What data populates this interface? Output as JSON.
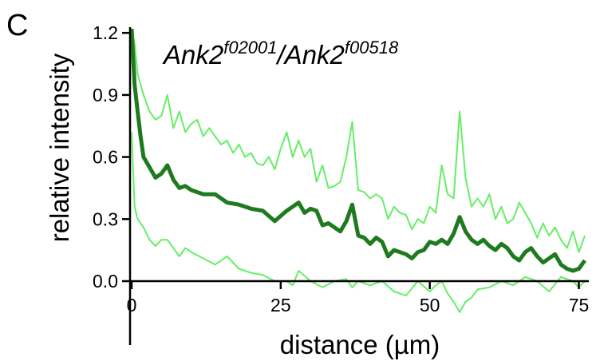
{
  "panel_label": "C",
  "chart_data": {
    "type": "line",
    "title_parts": [
      {
        "text": "Ank2",
        "sup": false
      },
      {
        "text": "f02001",
        "sup": true
      },
      {
        "text": "/Ank2",
        "sup": false
      },
      {
        "text": "f00518",
        "sup": true
      }
    ],
    "xlabel": "distance (µm)",
    "ylabel": "relative intensity",
    "xlim": [
      0,
      76
    ],
    "ylim": [
      0,
      1.22
    ],
    "xticks": [
      0,
      25,
      50,
      75
    ],
    "xtick_labels": [
      "0",
      "25",
      "50",
      "75"
    ],
    "yticks": [
      0.0,
      0.3,
      0.6,
      0.9,
      1.2
    ],
    "ytick_labels": [
      "0.0",
      "0.3",
      "0.6",
      "0.9",
      "1.2"
    ],
    "grid": false,
    "legend": "none",
    "series": [
      {
        "role": "mean",
        "color": "#1f7a1f",
        "x": [
          0,
          0.5,
          1,
          1.5,
          2,
          3,
          4,
          5,
          6,
          7,
          8,
          9,
          10,
          12,
          14,
          16,
          18,
          20,
          22,
          24,
          26,
          27,
          28,
          29,
          30,
          31,
          32,
          33,
          34,
          35,
          36,
          37,
          38,
          39,
          40,
          41,
          42,
          43,
          44,
          45,
          46,
          47,
          48,
          49,
          50,
          51,
          52,
          53,
          54,
          55,
          56,
          57,
          58,
          59,
          60,
          61,
          62,
          63,
          64,
          65,
          66,
          67,
          68,
          69,
          70,
          71,
          72,
          73,
          74,
          75,
          76
        ],
        "y": [
          1.22,
          0.95,
          0.82,
          0.7,
          0.6,
          0.55,
          0.5,
          0.52,
          0.56,
          0.49,
          0.45,
          0.46,
          0.44,
          0.42,
          0.42,
          0.38,
          0.37,
          0.35,
          0.34,
          0.29,
          0.34,
          0.36,
          0.38,
          0.33,
          0.35,
          0.34,
          0.27,
          0.28,
          0.26,
          0.24,
          0.29,
          0.37,
          0.22,
          0.21,
          0.18,
          0.21,
          0.19,
          0.12,
          0.15,
          0.14,
          0.13,
          0.11,
          0.14,
          0.15,
          0.19,
          0.18,
          0.2,
          0.18,
          0.23,
          0.31,
          0.24,
          0.2,
          0.18,
          0.2,
          0.17,
          0.15,
          0.18,
          0.16,
          0.12,
          0.1,
          0.14,
          0.16,
          0.12,
          0.09,
          0.11,
          0.13,
          0.08,
          0.06,
          0.05,
          0.06,
          0.1
        ]
      },
      {
        "role": "upper",
        "color": "#66ee66",
        "x": [
          0,
          0.5,
          1,
          2,
          3,
          4,
          5,
          6,
          7,
          8,
          9,
          10,
          11,
          12,
          13,
          14,
          15,
          16,
          17,
          18,
          19,
          20,
          21,
          22,
          23,
          24,
          25,
          26,
          27,
          28,
          29,
          30,
          31,
          32,
          33,
          34,
          35,
          36,
          37,
          38,
          39,
          40,
          41,
          42,
          43,
          44,
          45,
          46,
          47,
          48,
          49,
          50,
          51,
          52,
          53,
          54,
          55,
          56,
          57,
          58,
          59,
          60,
          61,
          62,
          63,
          64,
          65,
          66,
          67,
          68,
          69,
          70,
          71,
          72,
          73,
          74,
          75,
          76
        ],
        "y": [
          1.22,
          1.15,
          1.0,
          0.9,
          0.82,
          0.78,
          0.8,
          0.9,
          0.74,
          0.82,
          0.72,
          0.76,
          0.78,
          0.7,
          0.74,
          0.7,
          0.66,
          0.68,
          0.62,
          0.66,
          0.6,
          0.62,
          0.57,
          0.56,
          0.6,
          0.54,
          0.64,
          0.72,
          0.6,
          0.68,
          0.6,
          0.64,
          0.48,
          0.56,
          0.45,
          0.46,
          0.48,
          0.6,
          0.77,
          0.44,
          0.43,
          0.4,
          0.42,
          0.4,
          0.3,
          0.36,
          0.33,
          0.32,
          0.25,
          0.3,
          0.28,
          0.36,
          0.33,
          0.56,
          0.42,
          0.4,
          0.82,
          0.5,
          0.36,
          0.4,
          0.36,
          0.42,
          0.3,
          0.36,
          0.28,
          0.3,
          0.38,
          0.33,
          0.28,
          0.21,
          0.28,
          0.22,
          0.26,
          0.2,
          0.16,
          0.24,
          0.14,
          0.22
        ]
      },
      {
        "role": "lower",
        "color": "#66ee66",
        "x": [
          0,
          0.5,
          1,
          2,
          3,
          4,
          5,
          6,
          7,
          8,
          9,
          10,
          12,
          14,
          16,
          18,
          20,
          22,
          24,
          26,
          27,
          28,
          30,
          32,
          34,
          36,
          37,
          38,
          40,
          42,
          44,
          46,
          48,
          50,
          51,
          52,
          53,
          54,
          55,
          56,
          57,
          58,
          60,
          62,
          64,
          66,
          68,
          70,
          72,
          74,
          75,
          76
        ],
        "y": [
          0.72,
          0.36,
          0.3,
          0.26,
          0.2,
          0.17,
          0.2,
          0.2,
          0.16,
          0.12,
          0.16,
          0.14,
          0.11,
          0.08,
          0.12,
          0.06,
          0.04,
          0.03,
          0.0,
          0.0,
          -0.02,
          0.05,
          0.0,
          -0.03,
          0.0,
          0.01,
          -0.03,
          0.0,
          -0.02,
          0.0,
          -0.05,
          -0.07,
          0.0,
          -0.05,
          -0.02,
          0.0,
          -0.06,
          -0.1,
          -0.15,
          -0.1,
          -0.08,
          -0.04,
          -0.03,
          0.0,
          -0.02,
          0.02,
          0.0,
          -0.05,
          0.02,
          0.0,
          -0.03,
          0.0
        ]
      }
    ]
  }
}
